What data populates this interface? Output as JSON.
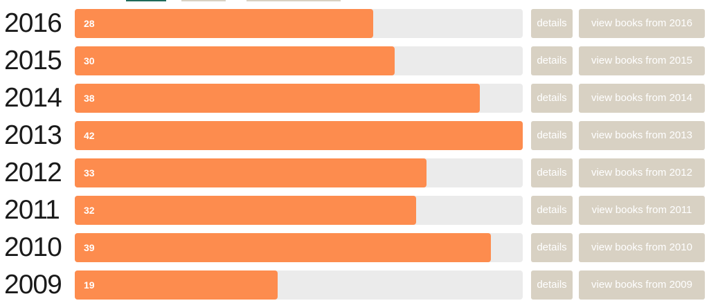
{
  "rows": [
    {
      "year": "2016",
      "count": 28,
      "details": "details",
      "view_books": "view books from 2016"
    },
    {
      "year": "2015",
      "count": 30,
      "details": "details",
      "view_books": "view books from 2015"
    },
    {
      "year": "2014",
      "count": 38,
      "details": "details",
      "view_books": "view books from 2014"
    },
    {
      "year": "2013",
      "count": 42,
      "details": "details",
      "view_books": "view books from 2013"
    },
    {
      "year": "2012",
      "count": 33,
      "details": "details",
      "view_books": "view books from 2012"
    },
    {
      "year": "2011",
      "count": 32,
      "details": "details",
      "view_books": "view books from 2011"
    },
    {
      "year": "2010",
      "count": 39,
      "details": "details",
      "view_books": "view books from 2010"
    },
    {
      "year": "2009",
      "count": 19,
      "details": "details",
      "view_books": "view books from 2009"
    }
  ]
}
